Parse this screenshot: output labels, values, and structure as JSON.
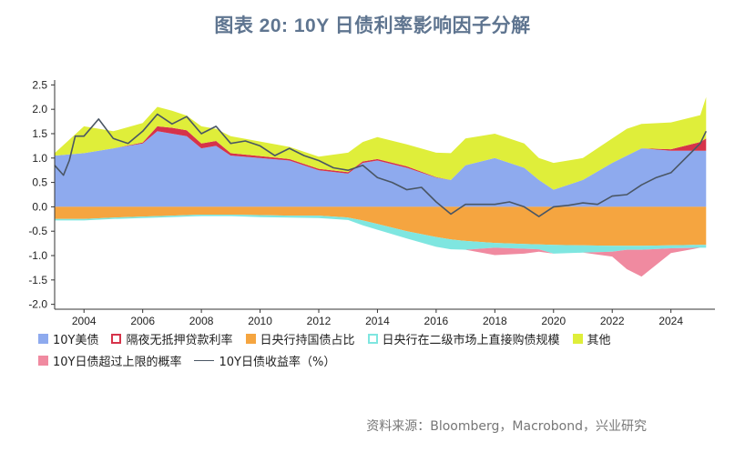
{
  "title": "图表 20: 10Y 日债利率影响因子分解",
  "source": "资料来源：Bloomberg，Macrobond，兴业研究",
  "colors": {
    "us": "#8eaaee",
    "collateral": "#d6334a",
    "boj_holding": "#f5a540",
    "boj_purchase": "#7fe6e0",
    "other": "#dfee3a",
    "exit_prob": "#f08aa0",
    "yield_line": "#4a5664"
  },
  "legend": [
    {
      "key": "us",
      "label": "10Y美债",
      "style": "fill"
    },
    {
      "key": "collateral",
      "label": "隔夜无抵押贷款利率",
      "style": "outline"
    },
    {
      "key": "boj_holding",
      "label": "日央行持国债占比",
      "style": "fill"
    },
    {
      "key": "boj_purchase",
      "label": "日央行在二级市场上直接购债规模",
      "style": "outline"
    },
    {
      "key": "other",
      "label": "其他",
      "style": "fill"
    },
    {
      "key": "exit_prob",
      "label": "10Y日债超过上限的概率",
      "style": "fill"
    },
    {
      "key": "yield_line",
      "label": "10Y日债收益率（%）",
      "style": "line"
    }
  ],
  "chart_data": {
    "type": "area",
    "title": "",
    "xlabel": "",
    "ylabel": "",
    "xlim": [
      2003,
      2025.5
    ],
    "ylim": [
      -2.1,
      2.6
    ],
    "yticks": [
      "2.5",
      "2.0",
      "1.5",
      "1.0",
      "0.5",
      "0.0",
      "-0.5",
      "-1.0",
      "-1.5",
      "-2.0"
    ],
    "xticks": [
      "2004",
      "2006",
      "2008",
      "2010",
      "2012",
      "2014",
      "2016",
      "2018",
      "2020",
      "2022",
      "2024"
    ],
    "grid": false,
    "x": [
      2003.0,
      2004.0,
      2005.0,
      2006.0,
      2006.5,
      2007.0,
      2007.5,
      2008.0,
      2008.5,
      2009.0,
      2010.0,
      2011.0,
      2012.0,
      2013.0,
      2013.5,
      2014.0,
      2015.0,
      2016.0,
      2016.5,
      2017.0,
      2018.0,
      2019.0,
      2019.5,
      2020.0,
      2021.0,
      2022.0,
      2022.5,
      2023.0,
      2024.0,
      2025.0,
      2025.2
    ],
    "series": [
      {
        "name": "10Y美债",
        "key": "us",
        "stack": "pos",
        "values": [
          1.05,
          1.1,
          1.2,
          1.3,
          1.55,
          1.5,
          1.45,
          1.2,
          1.25,
          1.05,
          1.0,
          0.95,
          0.75,
          0.68,
          0.9,
          0.95,
          0.8,
          0.6,
          0.55,
          0.85,
          1.0,
          0.8,
          0.55,
          0.35,
          0.55,
          0.9,
          1.05,
          1.2,
          1.15,
          1.15,
          1.15
        ]
      },
      {
        "name": "隔夜无抵押贷款利率",
        "key": "collateral",
        "stack": "pos",
        "values": [
          0.0,
          0.0,
          0.0,
          0.02,
          0.1,
          0.12,
          0.12,
          0.1,
          0.1,
          0.05,
          0.04,
          0.03,
          0.03,
          0.03,
          0.03,
          0.03,
          0.03,
          0.01,
          0.0,
          0.0,
          0.0,
          0.0,
          0.0,
          0.0,
          0.0,
          0.0,
          0.0,
          0.0,
          0.03,
          0.18,
          0.25
        ]
      },
      {
        "name": "其他",
        "key": "other",
        "stack": "pos",
        "values": [
          0.05,
          0.55,
          0.35,
          0.4,
          0.4,
          0.35,
          0.3,
          0.35,
          0.25,
          0.35,
          0.3,
          0.25,
          0.25,
          0.4,
          0.4,
          0.45,
          0.45,
          0.5,
          0.55,
          0.55,
          0.5,
          0.5,
          0.45,
          0.55,
          0.45,
          0.5,
          0.55,
          0.5,
          0.55,
          0.55,
          0.85
        ]
      },
      {
        "name": "日央行持国债占比",
        "key": "boj_holding",
        "stack": "neg",
        "values": [
          -0.25,
          -0.25,
          -0.22,
          -0.2,
          -0.19,
          -0.18,
          -0.17,
          -0.16,
          -0.16,
          -0.16,
          -0.17,
          -0.18,
          -0.18,
          -0.22,
          -0.28,
          -0.35,
          -0.5,
          -0.62,
          -0.67,
          -0.7,
          -0.74,
          -0.76,
          -0.77,
          -0.78,
          -0.79,
          -0.8,
          -0.8,
          -0.8,
          -0.79,
          -0.78,
          -0.78
        ]
      },
      {
        "name": "日央行在二级市场上直接购债规模",
        "key": "boj_purchase",
        "stack": "neg",
        "values": [
          -0.03,
          -0.03,
          -0.03,
          -0.03,
          -0.03,
          -0.03,
          -0.03,
          -0.03,
          -0.03,
          -0.03,
          -0.04,
          -0.04,
          -0.05,
          -0.05,
          -0.1,
          -0.12,
          -0.15,
          -0.2,
          -0.2,
          -0.18,
          -0.1,
          -0.1,
          -0.1,
          -0.18,
          -0.15,
          -0.12,
          -0.08,
          -0.08,
          -0.06,
          -0.06,
          -0.06
        ]
      },
      {
        "name": "10Y日债超过上限的概率",
        "key": "exit_prob",
        "stack": "neg",
        "values": [
          0,
          0,
          0,
          0,
          0,
          0,
          0,
          0,
          0,
          0,
          0,
          0,
          0,
          0,
          0,
          0,
          0,
          0,
          0,
          0,
          -0.15,
          -0.1,
          -0.05,
          0,
          0,
          -0.1,
          -0.4,
          -0.55,
          -0.1,
          0,
          0
        ]
      }
    ],
    "line": {
      "name": "10Y日债收益率（%）",
      "key": "yield_line",
      "x": [
        2003.0,
        2003.3,
        2003.5,
        2003.7,
        2004.0,
        2004.5,
        2005.0,
        2005.5,
        2006.0,
        2006.5,
        2007.0,
        2007.5,
        2008.0,
        2008.5,
        2009.0,
        2009.5,
        2010.0,
        2010.5,
        2011.0,
        2011.5,
        2012.0,
        2012.5,
        2013.0,
        2013.5,
        2014.0,
        2014.5,
        2015.0,
        2015.5,
        2016.0,
        2016.5,
        2017.0,
        2017.5,
        2018.0,
        2018.5,
        2019.0,
        2019.5,
        2020.0,
        2020.5,
        2021.0,
        2021.5,
        2022.0,
        2022.5,
        2023.0,
        2023.5,
        2024.0,
        2024.5,
        2025.0,
        2025.2
      ],
      "values": [
        0.85,
        0.65,
        0.95,
        1.45,
        1.45,
        1.8,
        1.4,
        1.3,
        1.55,
        1.9,
        1.7,
        1.85,
        1.5,
        1.65,
        1.3,
        1.35,
        1.25,
        1.05,
        1.2,
        1.05,
        0.95,
        0.8,
        0.75,
        0.85,
        0.6,
        0.5,
        0.35,
        0.4,
        0.1,
        -0.15,
        0.05,
        0.05,
        0.05,
        0.1,
        0.0,
        -0.2,
        0.0,
        0.03,
        0.08,
        0.05,
        0.22,
        0.25,
        0.45,
        0.6,
        0.7,
        1.0,
        1.3,
        1.55
      ]
    }
  }
}
